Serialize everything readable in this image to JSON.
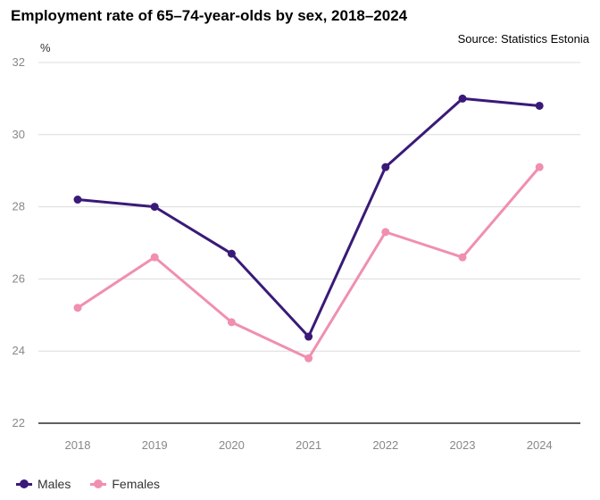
{
  "header": {
    "title": "Employment rate of 65–74-year-olds by sex, 2018–2024",
    "source": "Source: Statistics Estonia"
  },
  "chart_data": {
    "type": "line",
    "title": "Employment rate of 65–74-year-olds by sex, 2018–2024",
    "ylabel": "%",
    "xlabel": "",
    "categories": [
      "2018",
      "2019",
      "2020",
      "2021",
      "2022",
      "2023",
      "2024"
    ],
    "ylim": [
      22,
      32
    ],
    "yticks": [
      22,
      24,
      26,
      28,
      30,
      32
    ],
    "grid": true,
    "legend": "bottom-left",
    "series": [
      {
        "name": "Males",
        "color": "#3a1a78",
        "values": [
          28.2,
          28.0,
          26.7,
          24.4,
          29.1,
          31.0,
          30.8
        ]
      },
      {
        "name": "Females",
        "color": "#f08fb0",
        "values": [
          25.2,
          26.6,
          24.8,
          23.8,
          27.3,
          26.6,
          29.1
        ]
      }
    ]
  }
}
